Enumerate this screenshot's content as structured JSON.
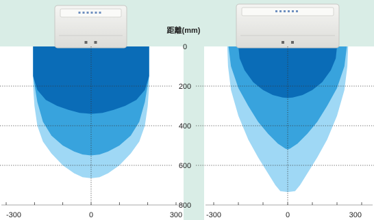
{
  "chart_data": {
    "type": "area",
    "ylabel": "距離(mm)",
    "ylim": [
      0,
      800
    ],
    "y_ticks": [
      "0",
      "200",
      "400",
      "600",
      "800"
    ],
    "xlim": [
      -300,
      300
    ],
    "x_ticks": [
      "-300",
      "0",
      "300"
    ],
    "grid": true,
    "colors": {
      "background": "#d9ede6",
      "panel": "#ffffff",
      "zone_outer": "#9fd8f5",
      "zone_middle": "#38a3dd",
      "zone_inner": "#0a6cb7",
      "grid": "#333333",
      "device": "#eeeeec"
    },
    "panels": [
      {
        "device_icon": "sensor-unit",
        "zones": [
          {
            "level": "outer",
            "x": [
              -205,
              -205,
              -200,
              -190,
              -170,
              -140,
              -100,
              -60,
              -30,
              0,
              30,
              60,
              100,
              140,
              170,
              190,
              200,
              205,
              205
            ],
            "y": [
              0,
              200,
              300,
              400,
              480,
              540,
              600,
              640,
              660,
              665,
              660,
              640,
              600,
              540,
              480,
              400,
              300,
              200,
              0
            ]
          },
          {
            "level": "middle",
            "x": [
              -205,
              -205,
              -190,
              -170,
              -140,
              -100,
              -60,
              -30,
              0,
              30,
              60,
              100,
              140,
              170,
              190,
              205,
              205
            ],
            "y": [
              0,
              150,
              280,
              380,
              450,
              500,
              530,
              545,
              550,
              545,
              530,
              500,
              450,
              380,
              280,
              150,
              0
            ]
          },
          {
            "level": "inner",
            "x": [
              -205,
              -205,
              -190,
              -160,
              -120,
              -80,
              -40,
              0,
              40,
              80,
              120,
              160,
              190,
              205,
              205
            ],
            "y": [
              0,
              150,
              220,
              270,
              300,
              320,
              335,
              340,
              335,
              320,
              300,
              270,
              220,
              150,
              0
            ]
          }
        ]
      },
      {
        "device_icon": "sensor-unit",
        "zones": [
          {
            "level": "outer",
            "x": [
              -245,
              -242,
              -230,
              -200,
              -160,
              -120,
              -80,
              -50,
              -30,
              0,
              30,
              50,
              80,
              120,
              160,
              200,
              230,
              242,
              245
            ],
            "y": [
              0,
              100,
              220,
              350,
              470,
              560,
              640,
              700,
              730,
              735,
              730,
              700,
              640,
              560,
              470,
              350,
              220,
              100,
              0
            ]
          },
          {
            "level": "middle",
            "x": [
              -240,
              -230,
              -200,
              -160,
              -120,
              -80,
              -40,
              -10,
              0,
              10,
              40,
              80,
              120,
              160,
              200,
              230,
              240
            ],
            "y": [
              0,
              100,
              210,
              300,
              380,
              440,
              490,
              515,
              520,
              515,
              490,
              440,
              380,
              300,
              210,
              100,
              0
            ]
          },
          {
            "level": "inner",
            "x": [
              -200,
              -195,
              -175,
              -140,
              -100,
              -60,
              -20,
              0,
              20,
              60,
              100,
              140,
              175,
              195,
              200
            ],
            "y": [
              0,
              60,
              120,
              180,
              220,
              245,
              258,
              260,
              258,
              245,
              220,
              180,
              120,
              60,
              0
            ]
          }
        ]
      }
    ]
  }
}
